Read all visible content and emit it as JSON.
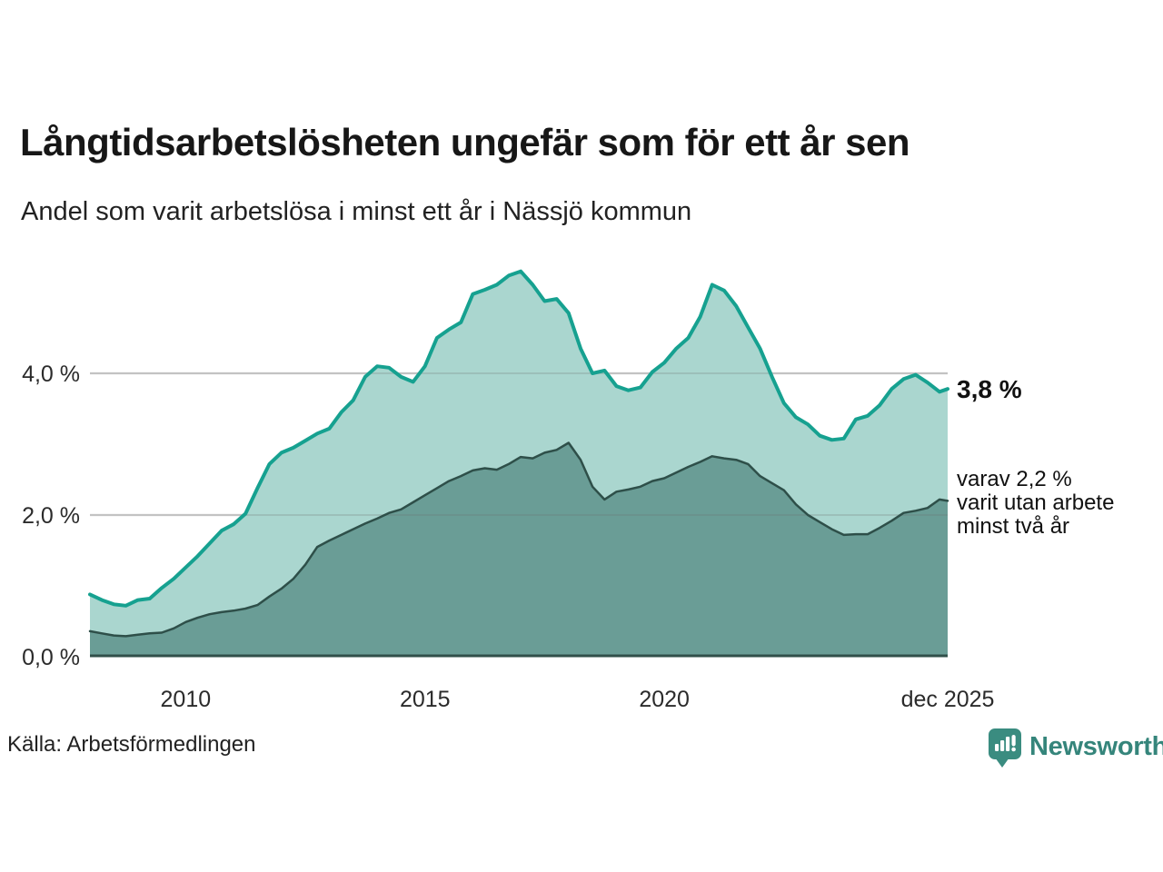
{
  "header": {
    "title": "Långtidsarbetslösheten ungefär som för ett år sen",
    "subtitle": "Andel som varit arbetslösa i minst ett år i Nässjö kommun"
  },
  "chart_data": {
    "type": "area",
    "title": "Långtidsarbetslösheten ungefär som för ett år sen",
    "subtitle": "Andel som varit arbetslösa i minst ett år i Nässjö kommun",
    "x_range": [
      2008.0,
      2025.92
    ],
    "ylim": [
      0,
      5.68
    ],
    "grid": "horizontal",
    "legend_position": "right-annotations",
    "x": [
      2008.0,
      2008.25,
      2008.5,
      2008.75,
      2009.0,
      2009.25,
      2009.5,
      2009.75,
      2010.0,
      2010.25,
      2010.5,
      2010.75,
      2011.0,
      2011.25,
      2011.5,
      2011.75,
      2012.0,
      2012.25,
      2012.5,
      2012.75,
      2013.0,
      2013.25,
      2013.5,
      2013.75,
      2014.0,
      2014.25,
      2014.5,
      2014.75,
      2015.0,
      2015.25,
      2015.5,
      2015.75,
      2016.0,
      2016.25,
      2016.5,
      2016.75,
      2017.0,
      2017.25,
      2017.5,
      2017.75,
      2018.0,
      2018.25,
      2018.5,
      2018.75,
      2019.0,
      2019.25,
      2019.5,
      2019.75,
      2020.0,
      2020.25,
      2020.5,
      2020.75,
      2021.0,
      2021.25,
      2021.5,
      2021.75,
      2022.0,
      2022.25,
      2022.5,
      2022.75,
      2023.0,
      2023.25,
      2023.5,
      2023.75,
      2024.0,
      2024.25,
      2024.5,
      2024.75,
      2025.0,
      2025.25,
      2025.5,
      2025.75,
      2025.92
    ],
    "series": [
      {
        "name": "Andel som varit arbetslösa i minst ett år",
        "end_value_label": "3,8 %",
        "line_color": "#16a190",
        "fill_color": "#aad6cf",
        "line_width": 4,
        "values": [
          0.88,
          0.8,
          0.74,
          0.72,
          0.8,
          0.82,
          0.97,
          1.1,
          1.26,
          1.42,
          1.6,
          1.78,
          1.87,
          2.02,
          2.38,
          2.72,
          2.88,
          2.95,
          3.05,
          3.15,
          3.22,
          3.45,
          3.62,
          3.95,
          4.1,
          4.08,
          3.95,
          3.88,
          4.1,
          4.5,
          4.62,
          4.72,
          5.12,
          5.18,
          5.25,
          5.38,
          5.44,
          5.25,
          5.02,
          5.05,
          4.85,
          4.35,
          4.0,
          4.04,
          3.82,
          3.76,
          3.8,
          4.02,
          4.15,
          4.35,
          4.5,
          4.8,
          5.25,
          5.17,
          4.95,
          4.65,
          4.35,
          3.95,
          3.58,
          3.38,
          3.28,
          3.12,
          3.06,
          3.08,
          3.35,
          3.4,
          3.55,
          3.78,
          3.92,
          3.98,
          3.87,
          3.74,
          3.78
        ]
      },
      {
        "name": "varav varit utan arbete minst två år",
        "end_value_label": "varav 2,2 %",
        "line_color": "#2e4f49",
        "fill_color": "#6a9d96",
        "line_width": 2.5,
        "values": [
          0.36,
          0.33,
          0.3,
          0.29,
          0.31,
          0.33,
          0.34,
          0.4,
          0.49,
          0.55,
          0.6,
          0.63,
          0.65,
          0.68,
          0.73,
          0.85,
          0.96,
          1.1,
          1.3,
          1.55,
          1.64,
          1.72,
          1.8,
          1.88,
          1.95,
          2.03,
          2.08,
          2.18,
          2.28,
          2.38,
          2.48,
          2.55,
          2.63,
          2.66,
          2.64,
          2.72,
          2.82,
          2.8,
          2.88,
          2.92,
          3.02,
          2.78,
          2.4,
          2.22,
          2.33,
          2.36,
          2.4,
          2.48,
          2.52,
          2.6,
          2.68,
          2.75,
          2.83,
          2.8,
          2.78,
          2.72,
          2.55,
          2.45,
          2.35,
          2.15,
          2.0,
          1.9,
          1.8,
          1.72,
          1.73,
          1.73,
          1.82,
          1.92,
          2.03,
          2.06,
          2.1,
          2.22,
          2.2
        ]
      }
    ],
    "yticks": [
      {
        "value": 0,
        "label": "0,0 %"
      },
      {
        "value": 2,
        "label": "2,0 %"
      },
      {
        "value": 4,
        "label": "4,0 %"
      }
    ],
    "xticks": [
      {
        "year": 2010,
        "label": "2010"
      },
      {
        "year": 2015,
        "label": "2015"
      },
      {
        "year": 2020,
        "label": "2020"
      },
      {
        "year": 2025.92,
        "label": "dec 2025"
      }
    ]
  },
  "annotations": {
    "series1_end_value": "3,8 %",
    "series2_note_lines": [
      "varav 2,2 %",
      "varit utan arbete",
      "minst två år"
    ]
  },
  "footer": {
    "source": "Källa: Arbetsförmedlingen",
    "brand": "Newsworthy"
  },
  "colors": {
    "accent_teal": "#16a190",
    "fill_light": "#aad6cf",
    "fill_dark": "#6a9d96",
    "line_dark": "#2e4f49",
    "gridline": "#dcdcdc",
    "axis_line": "#31504a",
    "brand_teal": "#35857b",
    "text_dark": "#171717"
  }
}
